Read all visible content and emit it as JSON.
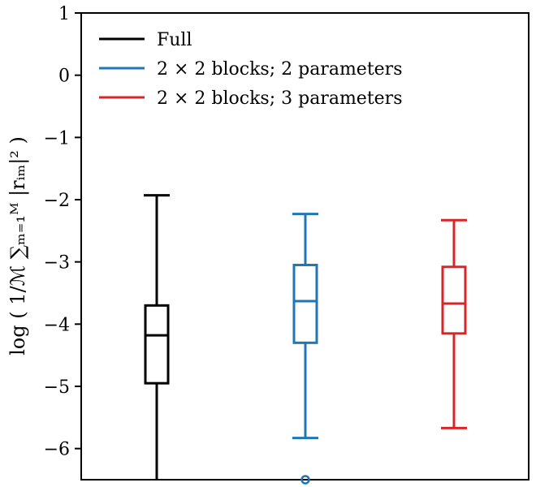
{
  "chart_data": {
    "type": "boxplot",
    "ylabel": "log ( 1/ℳ ∑ₘ₌₁ᴹ |rᵢₘ|² )",
    "ylim": [
      -6.5,
      1
    ],
    "yticks": [
      1,
      0,
      -1,
      -2,
      -3,
      -4,
      -5,
      -6
    ],
    "ytick_labels": [
      "1",
      "0",
      "−1",
      "−2",
      "−3",
      "−4",
      "−5",
      "−6"
    ],
    "grid": false,
    "legend_position": "upper-left",
    "series": [
      {
        "name": "Full",
        "color": "#000000",
        "whisker_high": -1.93,
        "q3": -3.7,
        "median": -4.18,
        "q1": -4.95,
        "whisker_low": -6.5,
        "outliers": []
      },
      {
        "name": "2 × 2 blocks; 2 parameters",
        "color": "#1f77b4",
        "whisker_high": -2.23,
        "q3": -3.05,
        "median": -3.63,
        "q1": -4.3,
        "whisker_low": -5.83,
        "outliers": [
          -6.5
        ]
      },
      {
        "name": "2 × 2 blocks; 3 parameters",
        "color": "#d62728",
        "whisker_high": -2.33,
        "q3": -3.08,
        "median": -3.67,
        "q1": -4.15,
        "whisker_low": -5.67,
        "outliers": []
      }
    ]
  }
}
